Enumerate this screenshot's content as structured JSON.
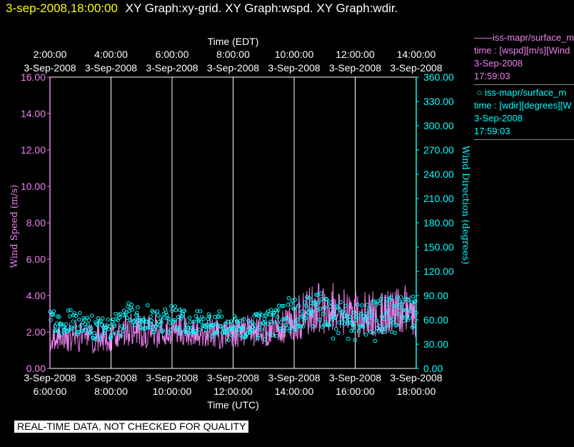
{
  "header": {
    "stamp": "3-sep-2008,18:00:00",
    "graphs": "XY Graph:xy-grid.  XY Graph:wspd.  XY Graph:wdir."
  },
  "colors": {
    "speed": "#ee82ee",
    "direction": "#00ffff",
    "grid": "#ffffff"
  },
  "legend": {
    "speed": {
      "line1": "iss-mapr/surface_m",
      "line2": "time : [wspd][m/s][Wind",
      "line3": "3-Sep-2008",
      "line4": "17:59:03"
    },
    "direction": {
      "line1": "iss-mapr/surface_m",
      "line2": "time : [wdir][degrees][W",
      "line3": "3-Sep-2008",
      "line4": "17:59:03"
    }
  },
  "disclaimer": "REAL-TIME DATA, NOT CHECKED FOR QUALITY",
  "chart_data": {
    "type": "line",
    "x_bottom_title": "Time (UTC)",
    "x_top_title": "Time (EDT)",
    "ylabel_left": "Wind Speed (m/s)",
    "ylabel_right": "Wind Direction (degrees)",
    "xlim_utc_hours": [
      6.0,
      18.0
    ],
    "ylim_left": [
      0,
      16
    ],
    "ylim_right": [
      0,
      360
    ],
    "x_ticks_utc": [
      {
        "hour": 6,
        "date": "3-Sep-2008",
        "time": "6:00:00"
      },
      {
        "hour": 8,
        "date": "3-Sep-2008",
        "time": "8:00:00"
      },
      {
        "hour": 10,
        "date": "3-Sep-2008",
        "time": "10:00:00"
      },
      {
        "hour": 12,
        "date": "3-Sep-2008",
        "time": "12:00:00"
      },
      {
        "hour": 14,
        "date": "3-Sep-2008",
        "time": "14:00:00"
      },
      {
        "hour": 16,
        "date": "3-Sep-2008",
        "time": "16:00:00"
      },
      {
        "hour": 18,
        "date": "3-Sep-2008",
        "time": "18:00:00"
      }
    ],
    "x_ticks_edt": [
      {
        "hour": 6,
        "date": "3-Sep-2008",
        "time": "2:00:00"
      },
      {
        "hour": 8,
        "date": "3-Sep-2008",
        "time": "4:00:00"
      },
      {
        "hour": 10,
        "date": "3-Sep-2008",
        "time": "6:00:00"
      },
      {
        "hour": 12,
        "date": "3-Sep-2008",
        "time": "8:00:00"
      },
      {
        "hour": 14,
        "date": "3-Sep-2008",
        "time": "10:00:00"
      },
      {
        "hour": 16,
        "date": "3-Sep-2008",
        "time": "12:00:00"
      },
      {
        "hour": 18,
        "date": "3-Sep-2008",
        "time": "14:00:00"
      }
    ],
    "y_ticks_left": [
      "0.00",
      "2.00",
      "4.00",
      "6.00",
      "8.00",
      "10.00",
      "12.00",
      "14.00",
      "16.00"
    ],
    "y_ticks_right": [
      "0.00",
      "30.00",
      "60.00",
      "90.00",
      "120.00",
      "150.00",
      "180.00",
      "210.00",
      "240.00",
      "270.00",
      "300.00",
      "330.00",
      "360.00"
    ],
    "grid_x": true,
    "series": [
      {
        "key": "wspd",
        "style": "line",
        "x": [
          6.0,
          6.33,
          6.67,
          7.0,
          7.33,
          7.67,
          8.0,
          8.33,
          8.67,
          9.0,
          9.33,
          9.67,
          10.0,
          10.33,
          10.67,
          11.0,
          11.33,
          11.67,
          12.0,
          12.33,
          12.67,
          13.0,
          13.33,
          13.67,
          14.0,
          14.33,
          14.67,
          15.0,
          15.33,
          15.67,
          16.0,
          16.33,
          16.67,
          17.0,
          17.33,
          17.67,
          18.0
        ],
        "values": [
          1.6,
          1.8,
          1.5,
          1.7,
          1.6,
          1.8,
          1.7,
          2.1,
          2.0,
          2.1,
          2.0,
          2.0,
          2.1,
          2.2,
          2.0,
          1.9,
          2.0,
          1.8,
          1.9,
          2.0,
          1.9,
          2.0,
          2.1,
          2.3,
          2.5,
          2.8,
          3.0,
          3.2,
          3.1,
          3.0,
          2.9,
          2.8,
          3.1,
          3.0,
          3.2,
          3.1,
          2.7
        ],
        "range_low": [
          1.0,
          1.0,
          0.9,
          1.0,
          0.9,
          1.1,
          1.0,
          1.3,
          1.3,
          1.2,
          1.2,
          1.1,
          1.3,
          1.4,
          1.2,
          1.1,
          1.2,
          1.0,
          1.1,
          1.2,
          1.1,
          1.2,
          1.3,
          1.4,
          1.5,
          1.8,
          2.0,
          2.0,
          1.9,
          1.8,
          1.7,
          1.6,
          1.9,
          1.8,
          2.0,
          1.9,
          1.7
        ],
        "range_high": [
          2.8,
          2.9,
          2.6,
          2.8,
          2.7,
          2.9,
          2.9,
          3.3,
          3.2,
          3.4,
          3.3,
          3.1,
          3.3,
          3.4,
          3.1,
          3.0,
          3.0,
          2.9,
          2.9,
          3.0,
          3.0,
          3.1,
          3.2,
          3.4,
          3.9,
          4.3,
          4.6,
          5.0,
          4.7,
          4.5,
          4.4,
          4.2,
          5.1,
          4.4,
          4.5,
          4.6,
          4.1
        ]
      },
      {
        "key": "wdir",
        "style": "scatter",
        "x": [
          6.0,
          6.33,
          6.67,
          7.0,
          7.33,
          7.67,
          8.0,
          8.33,
          8.67,
          9.0,
          9.33,
          9.67,
          10.0,
          10.33,
          10.67,
          11.0,
          11.33,
          11.67,
          12.0,
          12.33,
          12.67,
          13.0,
          13.33,
          13.67,
          14.0,
          14.33,
          14.67,
          15.0,
          15.33,
          15.67,
          16.0,
          16.33,
          16.67,
          17.0,
          17.33,
          17.67,
          18.0
        ],
        "values": [
          58,
          55,
          60,
          50,
          52,
          48,
          50,
          58,
          66,
          63,
          60,
          58,
          61,
          59,
          57,
          62,
          56,
          54,
          52,
          50,
          53,
          55,
          58,
          60,
          65,
          68,
          70,
          71,
          66,
          60,
          55,
          58,
          62,
          60,
          66,
          74,
          68
        ],
        "range_low": [
          40,
          38,
          44,
          32,
          34,
          30,
          32,
          40,
          50,
          46,
          44,
          42,
          44,
          42,
          40,
          44,
          38,
          36,
          34,
          32,
          34,
          36,
          30,
          34,
          38,
          40,
          42,
          34,
          32,
          30,
          30,
          32,
          34,
          36,
          40,
          46,
          42
        ],
        "range_high": [
          74,
          72,
          76,
          68,
          70,
          66,
          68,
          74,
          84,
          80,
          78,
          74,
          78,
          76,
          74,
          78,
          72,
          70,
          68,
          66,
          70,
          72,
          78,
          84,
          90,
          94,
          92,
          96,
          90,
          86,
          84,
          86,
          90,
          88,
          92,
          96,
          90
        ]
      }
    ]
  }
}
